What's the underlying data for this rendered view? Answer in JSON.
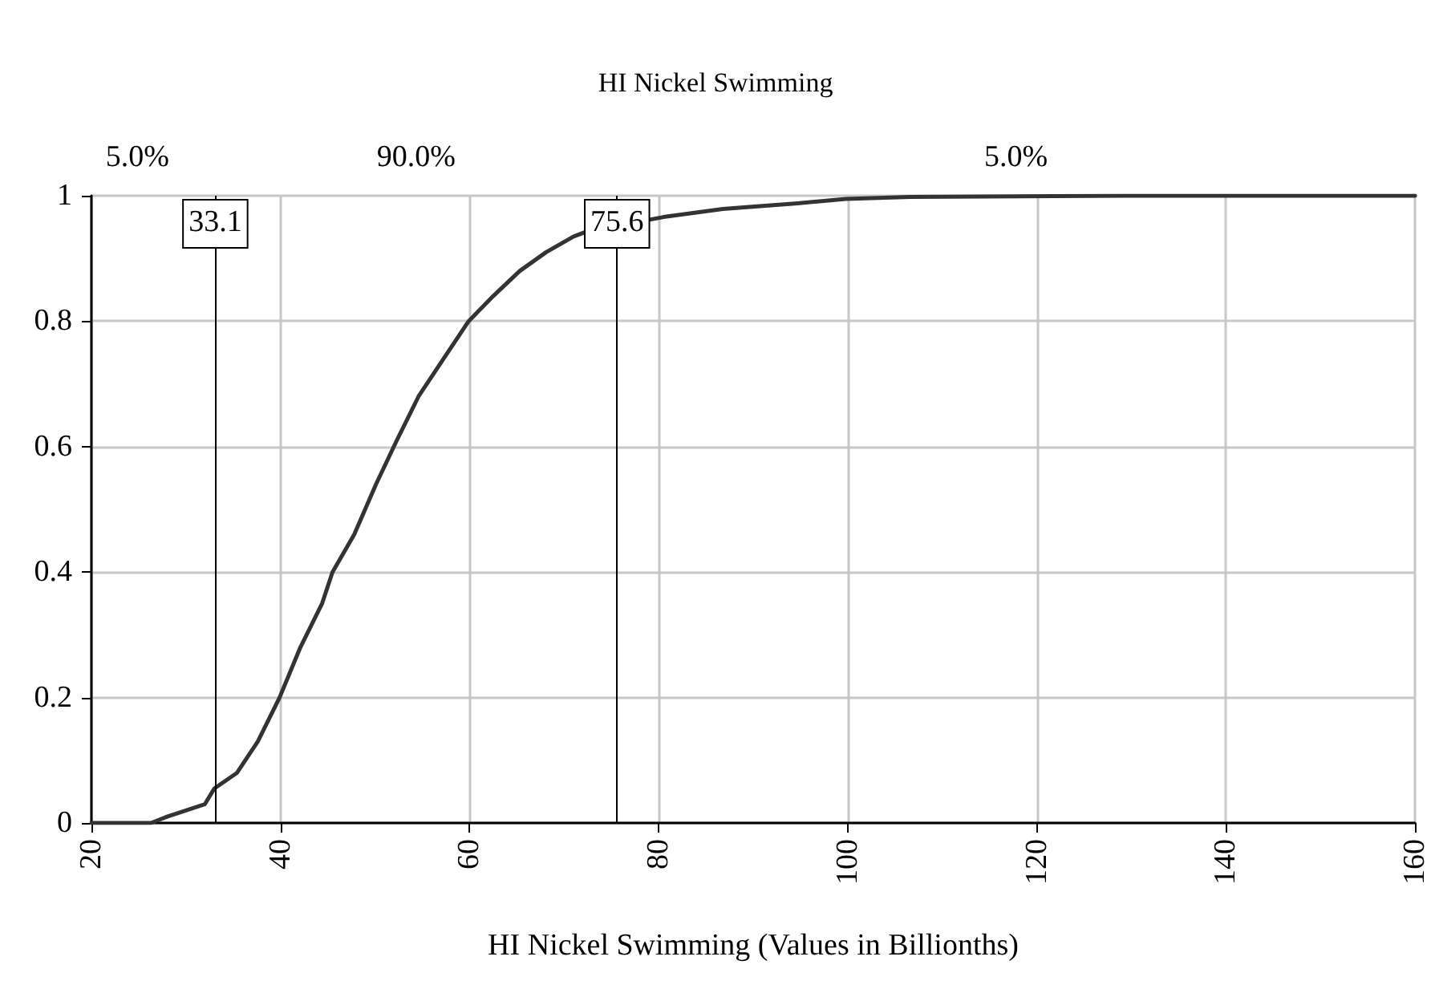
{
  "chart_data": {
    "type": "line",
    "title": "HI Nickel Swimming",
    "xlabel": "HI Nickel Swimming (Values in Billionths)",
    "series": [
      {
        "color": "#333333",
        "x": [
          20,
          26.3,
          28.0,
          32.0,
          33.0,
          35.4,
          37.6,
          39.9,
          42.1,
          44.4,
          45.5,
          47.8,
          50.1,
          52.3,
          54.6,
          56.8,
          59.9,
          62.5,
          65.3,
          68.1,
          71.0,
          72.4,
          80.5,
          86.8,
          94.7,
          99.8,
          106.6,
          129.3,
          160
        ],
        "values": [
          0,
          0,
          0.01,
          0.03,
          0.055,
          0.08,
          0.13,
          0.2,
          0.28,
          0.35,
          0.4,
          0.46,
          0.54,
          0.61,
          0.68,
          0.73,
          0.8,
          0.84,
          0.88,
          0.91,
          0.935,
          0.943,
          0.966,
          0.979,
          0.988,
          0.995,
          0.998,
          1.0,
          1.0
        ]
      }
    ],
    "xlim": [
      20,
      160
    ],
    "xticks": [
      20,
      40,
      60,
      80,
      100,
      120,
      140,
      160
    ],
    "ylim": [
      0,
      1
    ],
    "yticks": [
      0,
      0.2,
      0.4,
      0.6,
      0.8,
      1
    ],
    "ref_lines": [
      {
        "axis": "x",
        "value": 33.1,
        "label": "33.1",
        "color": "#000000"
      },
      {
        "axis": "x",
        "value": 75.6,
        "label": "75.6",
        "color": "#000000"
      }
    ],
    "annotations": [
      "5.0%",
      "90.0%",
      "5.0%"
    ],
    "grid": true,
    "marker": "none",
    "line_style": "solid"
  }
}
